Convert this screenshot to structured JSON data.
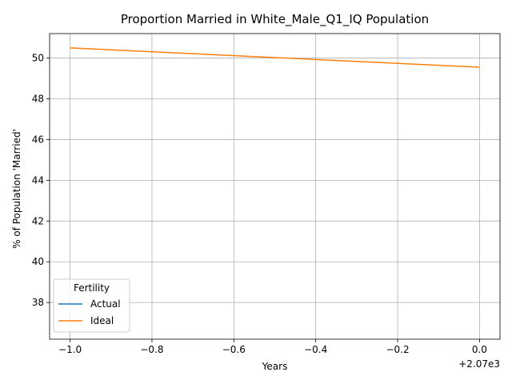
{
  "chart_data": {
    "type": "line",
    "title": "Proportion Married in White_Male_Q1_IQ Population",
    "xlabel": "Years",
    "ylabel": "% of Population 'Married'",
    "x_offset_label": "+2.07e3",
    "xlim": [
      -1.05,
      0.05
    ],
    "ylim": [
      36.2,
      51.2
    ],
    "grid": true,
    "x_ticks": [
      {
        "value": -1.0,
        "label": "−1.0"
      },
      {
        "value": -0.8,
        "label": "−0.8"
      },
      {
        "value": -0.6,
        "label": "−0.6"
      },
      {
        "value": -0.4,
        "label": "−0.4"
      },
      {
        "value": -0.2,
        "label": "−0.2"
      },
      {
        "value": 0.0,
        "label": "0.0"
      }
    ],
    "y_ticks": [
      {
        "value": 38,
        "label": "38"
      },
      {
        "value": 40,
        "label": "40"
      },
      {
        "value": 42,
        "label": "42"
      },
      {
        "value": 44,
        "label": "44"
      },
      {
        "value": 46,
        "label": "46"
      },
      {
        "value": 48,
        "label": "48"
      },
      {
        "value": 50,
        "label": "50"
      }
    ],
    "legend": {
      "title": "Fertility",
      "placement": "lower-left"
    },
    "series": [
      {
        "name": "Actual",
        "color": "#1f77b4",
        "x": [],
        "y": []
      },
      {
        "name": "Ideal",
        "color": "#ff7f0e",
        "x": [
          -1.0,
          0.0
        ],
        "y": [
          50.5,
          49.55
        ]
      }
    ]
  }
}
